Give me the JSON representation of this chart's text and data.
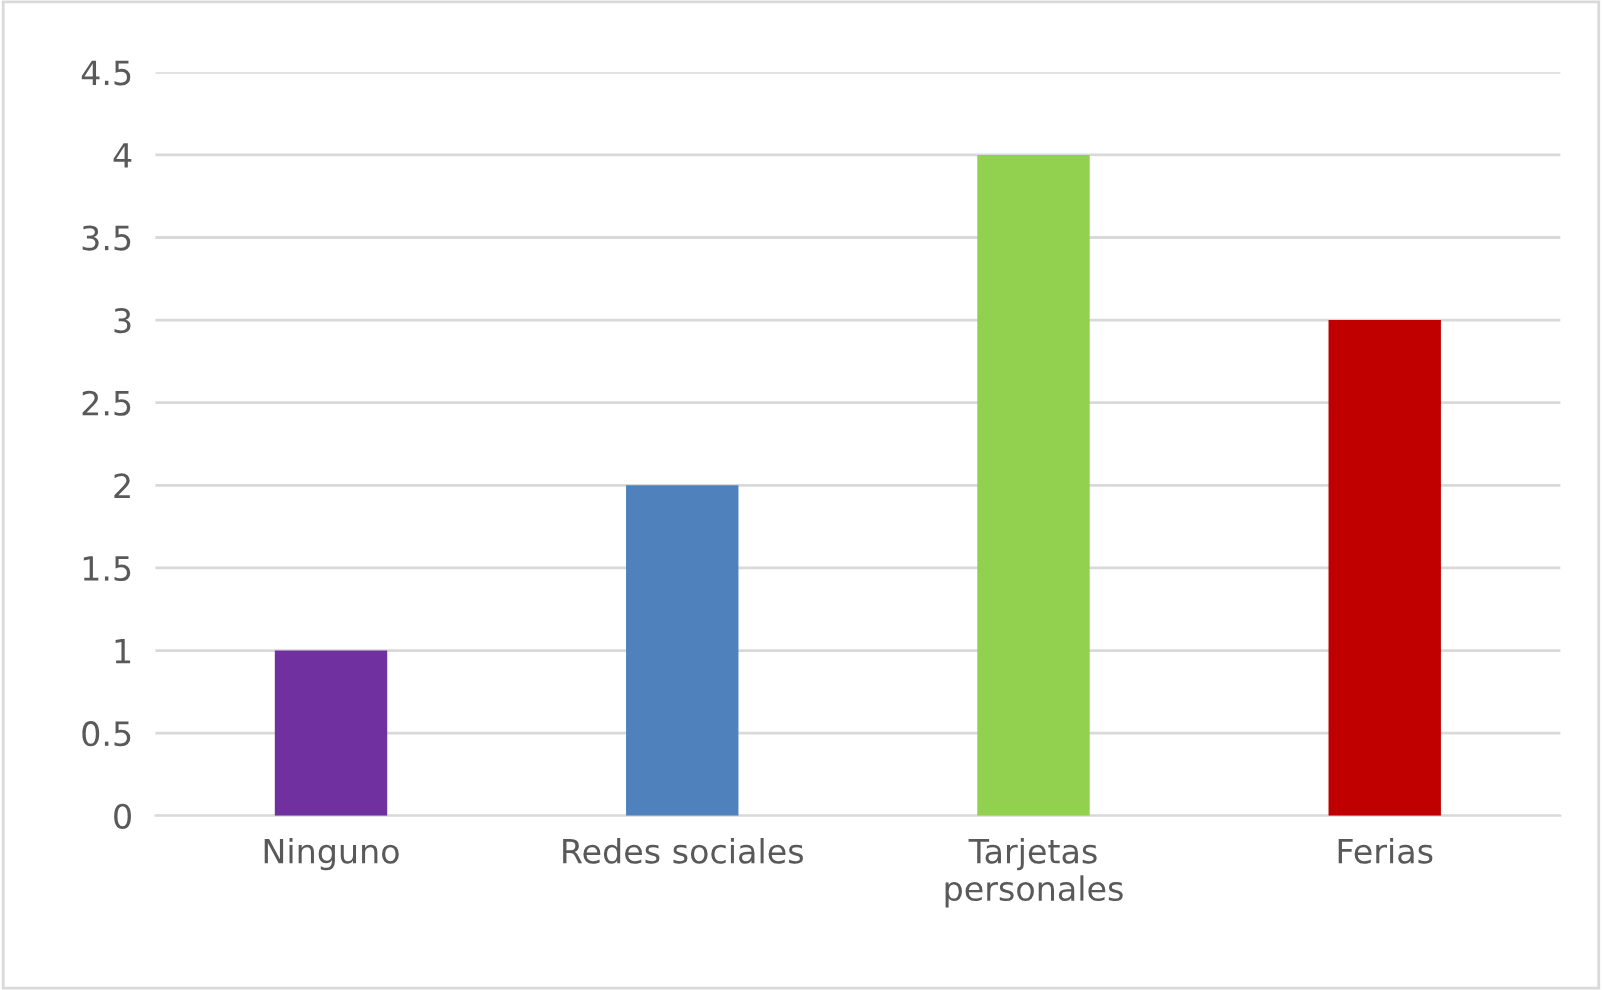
{
  "chart_data": {
    "type": "bar",
    "categories": [
      "Ninguno",
      "Redes sociales",
      "Tarjetas personales",
      "Ferias"
    ],
    "values": [
      1,
      2,
      4,
      3
    ],
    "colors": [
      "#7030a0",
      "#4f81bd",
      "#92d050",
      "#c00000"
    ],
    "ylim": [
      0,
      4.5
    ],
    "yticks": [
      0,
      0.5,
      1,
      1.5,
      2,
      2.5,
      3,
      3.5,
      4,
      4.5
    ],
    "grid": "y",
    "legend": false
  }
}
